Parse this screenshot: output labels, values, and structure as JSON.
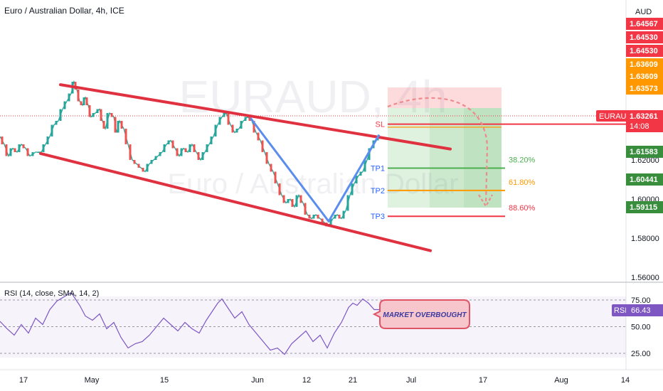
{
  "header": {
    "title": "Euro / Australian Dollar, 4h, ICE",
    "watermark_symbol": "EURAUD, 4h",
    "watermark_name": "Euro / Australian Dollar"
  },
  "rsi_panel": {
    "title": "RSI (14, close, SMA, 14, 2)",
    "badge_label": "RSI",
    "badge_value": "66.43",
    "annotation": "MARKET OVERBOUGHT",
    "ticks": [
      "75.00",
      "50.00",
      "25.00"
    ]
  },
  "price_axis": {
    "currency": "AUD",
    "ticks": [
      "1.62000",
      "1.60000",
      "1.58000",
      "1.56000"
    ],
    "tags": [
      {
        "text": "1.64567",
        "color": "#f23645"
      },
      {
        "text": "1.64530",
        "color": "#f23645"
      },
      {
        "text": "1.64530",
        "color": "#f23645"
      },
      {
        "text": "1.63609",
        "color": "#ff9800"
      },
      {
        "text": "1.63609",
        "color": "#ff9800"
      },
      {
        "text": "1.63573",
        "color": "#ff9800"
      },
      {
        "text": "1.61583",
        "color": "#388e3c"
      },
      {
        "text": "1.60441",
        "color": "#388e3c"
      },
      {
        "text": "1.59115",
        "color": "#388e3c"
      }
    ],
    "last_price": {
      "symbol": "EURAUD",
      "price": "1.63261",
      "countdown": "14:08",
      "color": "#f23645"
    }
  },
  "time_axis": {
    "labels": [
      "17",
      "May",
      "15",
      "Jun",
      "12",
      "21",
      "Jul",
      "17",
      "Aug",
      "14"
    ]
  },
  "levels": [
    {
      "label": "SL",
      "value": 1.6383,
      "pct": "",
      "color": "#f23645"
    },
    {
      "label": "TP1",
      "value": 1.6158,
      "pct": "38.20%",
      "color": "#4caf50"
    },
    {
      "label": "TP2",
      "value": 1.6044,
      "pct": "61.80%",
      "color": "#ff9800"
    },
    {
      "label": "TP3",
      "value": 1.5912,
      "pct": "88.60%",
      "color": "#f23645"
    }
  ],
  "chart_data": {
    "type": "candlestick",
    "symbol": "EURAUD",
    "interval": "4h",
    "ylim": [
      1.556,
      1.66
    ],
    "rsi_ylim": [
      15,
      85
    ],
    "entry": 1.6324,
    "stop_loss": 1.6383,
    "targets": [
      1.6158,
      1.6044,
      1.5912
    ],
    "price_path": [
      [
        0,
        1.632
      ],
      [
        6,
        1.628
      ],
      [
        12,
        1.622
      ],
      [
        18,
        1.626
      ],
      [
        24,
        1.624
      ],
      [
        30,
        1.628
      ],
      [
        36,
        1.626
      ],
      [
        42,
        1.622
      ],
      [
        50,
        1.624
      ],
      [
        58,
        1.624
      ],
      [
        64,
        1.628
      ],
      [
        70,
        1.632
      ],
      [
        76,
        1.638
      ],
      [
        82,
        1.64
      ],
      [
        88,
        1.646
      ],
      [
        94,
        1.65
      ],
      [
        100,
        1.654
      ],
      [
        104,
        1.66
      ],
      [
        108,
        1.656
      ],
      [
        112,
        1.65
      ],
      [
        116,
        1.648
      ],
      [
        120,
        1.652
      ],
      [
        124,
        1.648
      ],
      [
        128,
        1.642
      ],
      [
        134,
        1.644
      ],
      [
        140,
        1.646
      ],
      [
        144,
        1.64
      ],
      [
        148,
        1.636
      ],
      [
        154,
        1.644
      ],
      [
        160,
        1.642
      ],
      [
        164,
        1.634
      ],
      [
        168,
        1.64
      ],
      [
        174,
        1.636
      ],
      [
        180,
        1.628
      ],
      [
        186,
        1.62
      ],
      [
        192,
        1.618
      ],
      [
        198,
        1.616
      ],
      [
        204,
        1.614
      ],
      [
        210,
        1.618
      ],
      [
        216,
        1.62
      ],
      [
        222,
        1.622
      ],
      [
        228,
        1.624
      ],
      [
        234,
        1.628
      ],
      [
        240,
        1.63
      ],
      [
        246,
        1.626
      ],
      [
        252,
        1.622
      ],
      [
        258,
        1.626
      ],
      [
        264,
        1.624
      ],
      [
        270,
        1.628
      ],
      [
        276,
        1.624
      ],
      [
        282,
        1.62
      ],
      [
        288,
        1.624
      ],
      [
        294,
        1.628
      ],
      [
        300,
        1.632
      ],
      [
        306,
        1.638
      ],
      [
        312,
        1.642
      ],
      [
        318,
        1.644
      ],
      [
        324,
        1.638
      ],
      [
        330,
        1.634
      ],
      [
        336,
        1.636
      ],
      [
        342,
        1.64
      ],
      [
        348,
        1.642
      ],
      [
        354,
        1.64
      ],
      [
        360,
        1.634
      ],
      [
        366,
        1.63
      ],
      [
        372,
        1.624
      ],
      [
        378,
        1.618
      ],
      [
        384,
        1.614
      ],
      [
        390,
        1.608
      ],
      [
        396,
        1.602
      ],
      [
        402,
        1.598
      ],
      [
        408,
        1.6
      ],
      [
        414,
        1.596
      ],
      [
        420,
        1.602
      ],
      [
        426,
        1.598
      ],
      [
        432,
        1.592
      ],
      [
        438,
        1.59
      ],
      [
        444,
        1.592
      ],
      [
        450,
        1.59
      ],
      [
        456,
        1.588
      ],
      [
        462,
        1.586
      ],
      [
        468,
        1.59
      ],
      [
        474,
        1.592
      ],
      [
        480,
        1.59
      ],
      [
        486,
        1.594
      ],
      [
        492,
        1.602
      ],
      [
        498,
        1.608
      ],
      [
        504,
        1.612
      ],
      [
        510,
        1.614
      ],
      [
        516,
        1.62
      ],
      [
        522,
        1.626
      ],
      [
        528,
        1.63
      ],
      [
        534,
        1.632
      ]
    ],
    "rsi_path": [
      [
        0,
        55
      ],
      [
        10,
        48
      ],
      [
        20,
        42
      ],
      [
        30,
        52
      ],
      [
        40,
        44
      ],
      [
        50,
        58
      ],
      [
        60,
        52
      ],
      [
        70,
        66
      ],
      [
        80,
        74
      ],
      [
        90,
        78
      ],
      [
        100,
        82
      ],
      [
        106,
        76
      ],
      [
        112,
        70
      ],
      [
        120,
        60
      ],
      [
        130,
        56
      ],
      [
        140,
        62
      ],
      [
        150,
        48
      ],
      [
        160,
        54
      ],
      [
        170,
        40
      ],
      [
        180,
        30
      ],
      [
        190,
        34
      ],
      [
        200,
        36
      ],
      [
        210,
        42
      ],
      [
        220,
        50
      ],
      [
        230,
        58
      ],
      [
        240,
        52
      ],
      [
        250,
        46
      ],
      [
        260,
        54
      ],
      [
        270,
        48
      ],
      [
        280,
        44
      ],
      [
        290,
        56
      ],
      [
        300,
        66
      ],
      [
        306,
        72
      ],
      [
        312,
        76
      ],
      [
        320,
        68
      ],
      [
        330,
        58
      ],
      [
        340,
        64
      ],
      [
        350,
        52
      ],
      [
        360,
        44
      ],
      [
        370,
        36
      ],
      [
        380,
        28
      ],
      [
        390,
        30
      ],
      [
        400,
        24
      ],
      [
        410,
        34
      ],
      [
        420,
        40
      ],
      [
        430,
        46
      ],
      [
        440,
        36
      ],
      [
        450,
        42
      ],
      [
        460,
        30
      ],
      [
        470,
        44
      ],
      [
        480,
        54
      ],
      [
        490,
        68
      ],
      [
        496,
        72
      ],
      [
        502,
        70
      ],
      [
        510,
        76
      ],
      [
        518,
        72
      ],
      [
        526,
        66
      ],
      [
        534,
        66
      ]
    ],
    "channel_upper": [
      [
        85,
        1.6585
      ],
      [
        633,
        1.6256
      ]
    ],
    "channel_lower": [
      [
        57,
        1.6233
      ],
      [
        605,
        1.5736
      ]
    ],
    "wave": [
      [
        352,
        1.6415
      ],
      [
        462,
        1.5886
      ],
      [
        533,
        1.6329
      ]
    ]
  }
}
